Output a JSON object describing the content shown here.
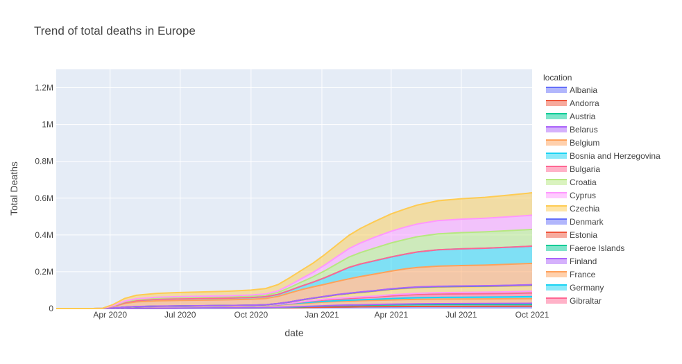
{
  "chart_data": {
    "type": "area",
    "title": "Trend of total deaths in Europe",
    "xlabel": "date",
    "ylabel": "Total Deaths",
    "x": [
      "2020-01-22",
      "2020-02-15",
      "2020-03-10",
      "2020-03-22",
      "2020-04-05",
      "2020-04-20",
      "2020-05-05",
      "2020-06-01",
      "2020-07-01",
      "2020-08-01",
      "2020-09-01",
      "2020-10-01",
      "2020-10-20",
      "2020-11-05",
      "2020-11-20",
      "2020-12-05",
      "2020-12-20",
      "2021-01-05",
      "2021-01-20",
      "2021-02-05",
      "2021-02-20",
      "2021-03-10",
      "2021-04-01",
      "2021-04-20",
      "2021-05-05",
      "2021-06-01",
      "2021-07-01",
      "2021-08-01",
      "2021-09-01",
      "2021-10-01"
    ],
    "xlim": [
      "2020-01-22",
      "2021-10-01"
    ],
    "x_ticks": [
      {
        "date": "2020-04-01",
        "label": "Apr 2020"
      },
      {
        "date": "2020-07-01",
        "label": "Jul 2020"
      },
      {
        "date": "2020-10-01",
        "label": "Oct 2020"
      },
      {
        "date": "2021-01-01",
        "label": "Jan 2021"
      },
      {
        "date": "2021-04-01",
        "label": "Apr 2021"
      },
      {
        "date": "2021-07-01",
        "label": "Jul 2021"
      },
      {
        "date": "2021-10-01",
        "label": "Oct 2021"
      }
    ],
    "ylim": [
      0,
      1300000
    ],
    "y_ticks": [
      {
        "value": 0,
        "label": "0"
      },
      {
        "value": 200000,
        "label": "0.2M"
      },
      {
        "value": 400000,
        "label": "0.4M"
      },
      {
        "value": 600000,
        "label": "0.6M"
      },
      {
        "value": 800000,
        "label": "0.8M"
      },
      {
        "value": 1000000,
        "label": "1M"
      },
      {
        "value": 1200000,
        "label": "1.2M"
      }
    ],
    "grid": true,
    "stacked": true,
    "legend_title": "location",
    "legend_position": "right",
    "series": [
      {
        "name": "Albania",
        "color": "#636efa",
        "values": [
          0,
          0,
          0,
          50,
          150,
          300,
          500,
          800,
          1200,
          1700,
          2200,
          2800,
          3200,
          3800,
          4500,
          5200,
          6000,
          7000,
          7800,
          8600,
          9200,
          10000,
          10600,
          11000,
          11300,
          11600,
          11800,
          12000,
          12300,
          12600
        ]
      },
      {
        "name": "Andorra",
        "color": "#ef553b",
        "values": [
          0,
          0,
          0,
          5,
          20,
          35,
          45,
          55,
          60,
          65,
          70,
          75,
          80,
          85,
          90,
          95,
          100,
          105,
          110,
          115,
          120,
          122,
          124,
          125,
          126,
          127,
          128,
          129,
          130,
          130
        ]
      },
      {
        "name": "Austria",
        "color": "#00cc96",
        "values": [
          0,
          0,
          0,
          50,
          300,
          500,
          600,
          700,
          720,
          730,
          760,
          800,
          900,
          1500,
          2500,
          3800,
          5000,
          6200,
          7200,
          8000,
          8500,
          9000,
          9600,
          10000,
          10400,
          10700,
          10750,
          10800,
          10850,
          10900
        ]
      },
      {
        "name": "Belarus",
        "color": "#ab63fa",
        "values": [
          0,
          0,
          0,
          0,
          20,
          100,
          200,
          350,
          550,
          700,
          800,
          900,
          1000,
          1200,
          1400,
          1600,
          1800,
          2000,
          2200,
          2400,
          2600,
          2900,
          3200,
          3400,
          3600,
          3900,
          4100,
          4300,
          4600,
          4900
        ]
      },
      {
        "name": "Belgium",
        "color": "#ffa15a",
        "values": [
          0,
          0,
          0,
          100,
          2000,
          5800,
          8000,
          9500,
          9700,
          9850,
          9900,
          10000,
          10500,
          12500,
          15000,
          17000,
          18600,
          19800,
          20500,
          21300,
          22000,
          22400,
          23300,
          24000,
          24500,
          25000,
          25100,
          25200,
          25300,
          25400
        ]
      },
      {
        "name": "Bosnia and Herzegovina",
        "color": "#19d3f3",
        "values": [
          0,
          0,
          0,
          0,
          20,
          80,
          150,
          170,
          250,
          450,
          650,
          900,
          1150,
          1500,
          2000,
          2800,
          3500,
          4000,
          4400,
          4700,
          5000,
          5600,
          7500,
          8300,
          8800,
          9200,
          9400,
          9600,
          10000,
          10600
        ]
      },
      {
        "name": "Bulgaria",
        "color": "#ff6692",
        "values": [
          0,
          0,
          0,
          5,
          20,
          50,
          80,
          150,
          300,
          500,
          650,
          800,
          1000,
          1300,
          1900,
          3700,
          5800,
          7500,
          8800,
          9700,
          10500,
          11600,
          14400,
          16000,
          17000,
          17800,
          18100,
          18300,
          18700,
          20000
        ]
      },
      {
        "name": "Croatia",
        "color": "#b6e880",
        "values": [
          0,
          0,
          0,
          0,
          10,
          40,
          70,
          90,
          100,
          120,
          170,
          280,
          400,
          700,
          1300,
          2100,
          3200,
          4200,
          4700,
          5000,
          5200,
          5400,
          5700,
          6200,
          6700,
          7300,
          7700,
          8100,
          8500,
          8800
        ]
      },
      {
        "name": "Cyprus",
        "color": "#ff97ff",
        "values": [
          0,
          0,
          0,
          0,
          5,
          12,
          14,
          15,
          16,
          17,
          18,
          20,
          22,
          25,
          30,
          60,
          110,
          140,
          170,
          200,
          220,
          240,
          260,
          280,
          300,
          350,
          380,
          420,
          520,
          580
        ]
      },
      {
        "name": "Czechia",
        "color": "#fecb52",
        "values": [
          0,
          0,
          0,
          2,
          40,
          150,
          260,
          320,
          350,
          370,
          420,
          650,
          1200,
          3500,
          5800,
          9300,
          10900,
          13000,
          17000,
          20000,
          23000,
          26000,
          28500,
          29500,
          30000,
          30200,
          30300,
          30350,
          30400,
          30480
        ]
      },
      {
        "name": "Denmark",
        "color": "#636efa",
        "values": [
          0,
          0,
          0,
          10,
          180,
          350,
          500,
          600,
          620,
          640,
          660,
          670,
          700,
          750,
          780,
          900,
          1100,
          1550,
          1950,
          2200,
          2350,
          2410,
          2450,
          2490,
          2500,
          2520,
          2540,
          2560,
          2600,
          2650
        ]
      },
      {
        "name": "Estonia",
        "color": "#ef553b",
        "values": [
          0,
          0,
          0,
          0,
          20,
          45,
          60,
          67,
          68,
          68,
          68,
          70,
          72,
          75,
          80,
          100,
          160,
          230,
          310,
          410,
          550,
          700,
          900,
          1110,
          1200,
          1250,
          1270,
          1280,
          1300,
          1350
        ]
      },
      {
        "name": "Faeroe Islands",
        "color": "#00cc96",
        "values": [
          0,
          0,
          0,
          0,
          0,
          0,
          0,
          0,
          0,
          0,
          0,
          0,
          0,
          0,
          0,
          0,
          0,
          0,
          1,
          1,
          1,
          1,
          1,
          1,
          1,
          1,
          1,
          2,
          2,
          2
        ]
      },
      {
        "name": "Finland",
        "color": "#ab63fa",
        "values": [
          0,
          0,
          0,
          0,
          20,
          100,
          280,
          320,
          330,
          333,
          336,
          345,
          350,
          370,
          400,
          450,
          520,
          570,
          600,
          690,
          720,
          790,
          860,
          900,
          930,
          960,
          975,
          990,
          1040,
          1080
        ]
      },
      {
        "name": "France",
        "color": "#ffa15a",
        "values": [
          0,
          0,
          0,
          500,
          8000,
          20000,
          25500,
          28800,
          29900,
          30300,
          30700,
          32000,
          34000,
          38500,
          48500,
          55000,
          60500,
          65500,
          71000,
          78000,
          84000,
          90000,
          96000,
          103000,
          106000,
          109500,
          111000,
          112000,
          114500,
          116000
        ]
      },
      {
        "name": "Germany",
        "color": "#19d3f3",
        "values": [
          0,
          0,
          0,
          100,
          1500,
          4500,
          7000,
          8600,
          9000,
          9200,
          9300,
          9500,
          9800,
          11000,
          14000,
          19000,
          25000,
          36000,
          48000,
          62000,
          68000,
          72000,
          77000,
          80000,
          84000,
          89000,
          91000,
          91700,
          92400,
          93500
        ]
      },
      {
        "name": "Gibraltar",
        "color": "#ff6692",
        "values": [
          0,
          0,
          0,
          0,
          0,
          0,
          0,
          0,
          0,
          0,
          0,
          0,
          0,
          0,
          0,
          1,
          2,
          10,
          30,
          60,
          88,
          93,
          94,
          94,
          94,
          94,
          95,
          96,
          97,
          97
        ]
      },
      {
        "name": "",
        "color": "#b6e880",
        "values": [
          0,
          0,
          0,
          50,
          2000,
          4500,
          5300,
          6000,
          6400,
          6600,
          6900,
          7400,
          8100,
          10500,
          15500,
          22000,
          29000,
          38000,
          47000,
          56000,
          62000,
          69000,
          76000,
          80000,
          83000,
          86500,
          88000,
          89000,
          90000,
          91000
        ]
      },
      {
        "name": "",
        "color": "#ff97ff",
        "values": [
          0,
          0,
          0,
          40,
          1800,
          3900,
          4600,
          5100,
          5300,
          5500,
          5700,
          6100,
          6800,
          8900,
          13000,
          18500,
          24000,
          31500,
          38500,
          46000,
          52000,
          58000,
          64000,
          67000,
          69000,
          72000,
          73000,
          74000,
          75500,
          77000
        ]
      },
      {
        "name": "",
        "color": "#fecb52",
        "values": [
          0,
          0,
          0,
          100,
          6000,
          14500,
          18800,
          21000,
          22400,
          23500,
          25000,
          27000,
          29500,
          34000,
          40000,
          45000,
          50000,
          57000,
          64000,
          72000,
          79000,
          86000,
          94000,
          99000,
          103000,
          108000,
          111000,
          113500,
          118000,
          122000
        ]
      }
    ]
  }
}
